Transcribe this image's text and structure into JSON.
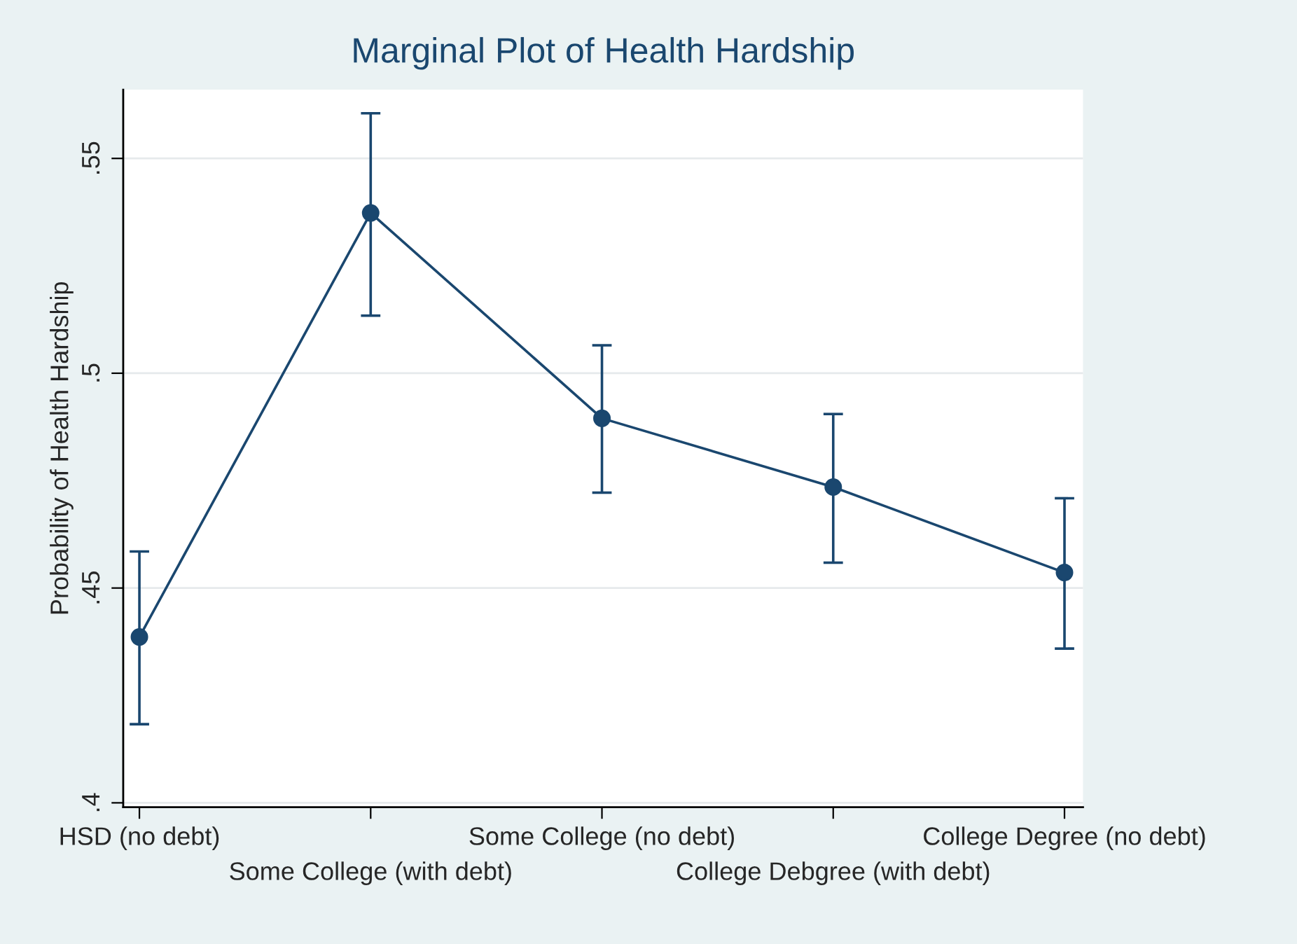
{
  "chart_data": {
    "type": "line",
    "title": "Marginal Plot of Health Hardship",
    "ylabel": "Probability of Health Hardship",
    "categories": [
      "HSD (no debt)",
      "Some College (with debt)",
      "Some College (no debt)",
      "College Debgree (with debt)",
      "College Degree (no debt)"
    ],
    "series": [
      {
        "color": "#1a476f",
        "values": [
          0.4386,
          0.5373,
          0.4895,
          0.4735,
          0.4536
        ],
        "errors": [
          [
            0.4183,
            0.4585
          ],
          [
            0.5134,
            0.5605
          ],
          [
            0.4722,
            0.5065
          ],
          [
            0.4559,
            0.4905
          ],
          [
            0.4359,
            0.4709
          ]
        ]
      }
    ],
    "ylim": [
      0.399,
      0.566
    ],
    "yticks": [
      {
        "value": 0.4,
        "label": ".4"
      },
      {
        "value": 0.45,
        "label": ".45"
      },
      {
        "value": 0.5,
        "label": ".5"
      },
      {
        "value": 0.55,
        "label": ".55"
      }
    ],
    "grid": "y",
    "marker": "circle",
    "line_style": "solid"
  }
}
